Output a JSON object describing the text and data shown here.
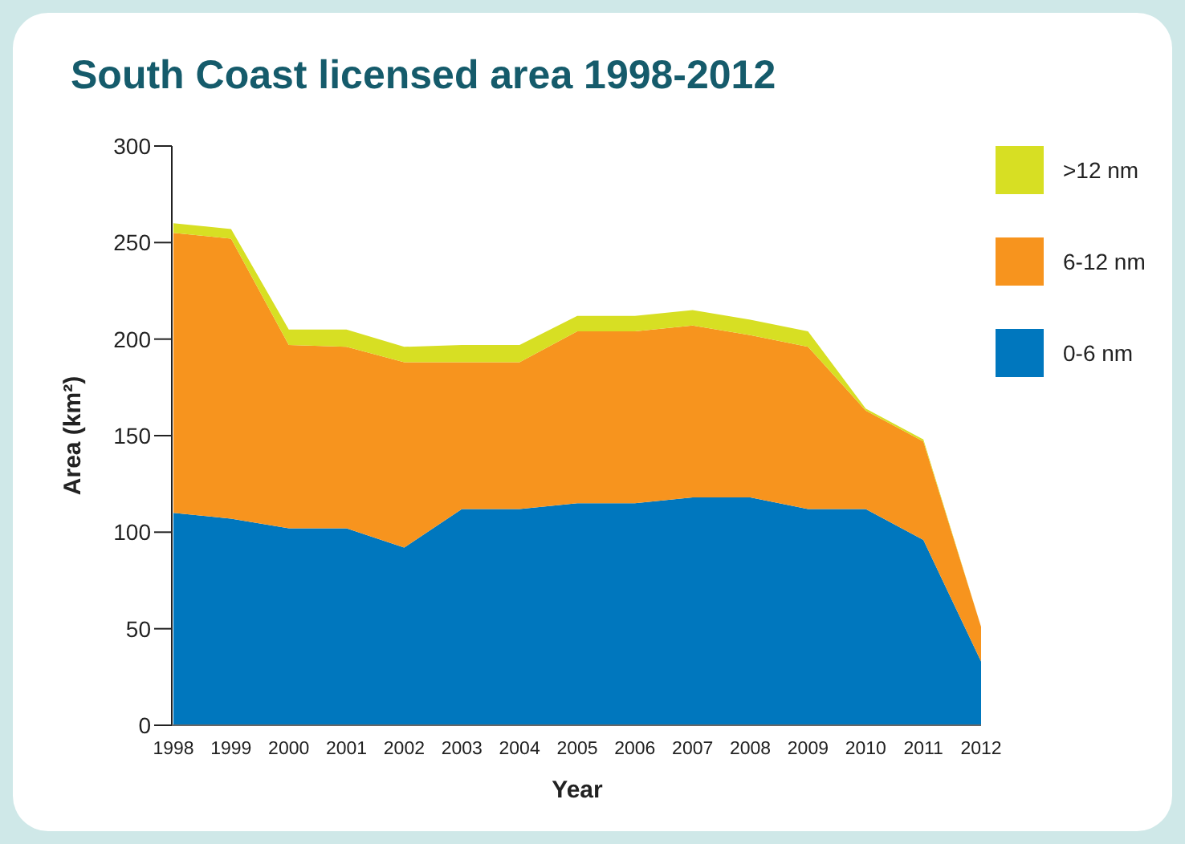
{
  "chart_data": {
    "type": "area",
    "stacked": true,
    "title": "South Coast licensed area 1998-2012",
    "xlabel": "Year",
    "ylabel": "Area (km²)",
    "x": [
      1998,
      1999,
      2000,
      2001,
      2002,
      2003,
      2004,
      2005,
      2006,
      2007,
      2008,
      2009,
      2010,
      2011,
      2012
    ],
    "xlim": [
      1998,
      2012
    ],
    "xticks": [
      1998,
      1999,
      2000,
      2001,
      2002,
      2003,
      2004,
      2005,
      2006,
      2007,
      2008,
      2009,
      2010,
      2011,
      2012
    ],
    "ylim": [
      0,
      300
    ],
    "yticks": [
      0,
      50,
      100,
      150,
      200,
      250,
      300
    ],
    "grid": false,
    "legend": "right",
    "series": [
      {
        "name": "0-6 nm",
        "color": "#0077be",
        "values": [
          110,
          107,
          102,
          102,
          92,
          112,
          112,
          115,
          115,
          118,
          118,
          112,
          112,
          96,
          33
        ]
      },
      {
        "name": "6-12 nm",
        "color": "#f7941e",
        "values": [
          145,
          145,
          95,
          94,
          96,
          76,
          76,
          89,
          89,
          89,
          84,
          84,
          51,
          51,
          18
        ]
      },
      {
        "name": ">12 nm",
        "color": "#d7df23",
        "values": [
          5,
          5,
          8,
          9,
          8,
          9,
          9,
          8,
          8,
          8,
          8,
          8,
          1,
          1,
          0
        ]
      }
    ]
  }
}
